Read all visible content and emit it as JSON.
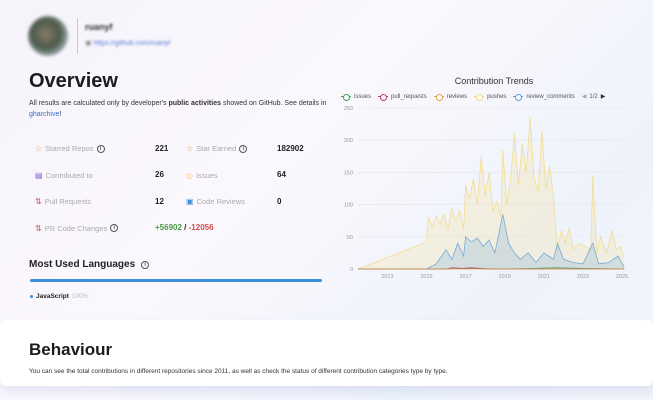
{
  "profile": {
    "username": "ruanyf",
    "url": "https://github.com/ruanyf"
  },
  "overview": {
    "title": "Overview",
    "desc_pre": "All results are calculated only by developer's ",
    "desc_bold": "public activities",
    "desc_mid": " showed on GitHub. See details in ",
    "desc_link": "gharchive",
    "desc_end": "!"
  },
  "stats": [
    {
      "label": "Starred Repos",
      "value": "221",
      "icon": "star-icon",
      "info": true
    },
    {
      "label": "Star Earned",
      "value": "182902",
      "icon": "star-icon",
      "info": true
    },
    {
      "label": "Contributed to",
      "value": "26",
      "icon": "repo-icon"
    },
    {
      "label": "Issues",
      "value": "64",
      "icon": "issue-icon"
    },
    {
      "label": "Pull Requests",
      "value": "12",
      "icon": "pull-request-icon"
    },
    {
      "label": "Code Reviews",
      "value": "0",
      "icon": "code-review-icon"
    },
    {
      "label": "PR Code Changes",
      "icon": "pull-request-icon",
      "info": true,
      "additions": "+56902",
      "sep": "/",
      "deletions": "-12056"
    }
  ],
  "languages": {
    "title": "Most Used Languages",
    "items": [
      {
        "name": "JavaScript",
        "percent": "100%",
        "color": "#3b8fd8"
      }
    ]
  },
  "behaviour": {
    "title": "Behaviour",
    "desc": "You can see the total contributions in different repositories since 2011, as well as check the status of different contribution categories type by type."
  },
  "colors": {
    "additions": "#4a9a4a",
    "deletions": "#d04a4a",
    "accent": "#3b8fd8"
  },
  "chart_data": {
    "type": "area",
    "title": "Contribution Trends",
    "legend_page": "1/2",
    "legend_placement": "top",
    "xlim": [
      2011.5,
      2025.25
    ],
    "ylim": [
      0,
      250
    ],
    "yticks": [
      0,
      50,
      100,
      150,
      200,
      250
    ],
    "xticks": [
      2013,
      2015,
      2017,
      2019,
      2021,
      2023,
      2025
    ],
    "grid": true,
    "series": [
      {
        "name": "issues",
        "color": "#3ba35a",
        "points": [
          [
            2011.5,
            0
          ],
          [
            2016,
            0
          ],
          [
            2017,
            1
          ],
          [
            2019,
            0
          ],
          [
            2020.5,
            1
          ],
          [
            2021.5,
            2
          ],
          [
            2023,
            1
          ],
          [
            2025.1,
            0
          ]
        ]
      },
      {
        "name": "pull_requests",
        "color": "#c23a6a",
        "points": [
          [
            2011.5,
            0
          ],
          [
            2016,
            0
          ],
          [
            2016.3,
            2
          ],
          [
            2016.8,
            1
          ],
          [
            2017.3,
            2
          ],
          [
            2017.8,
            1
          ],
          [
            2018,
            0
          ],
          [
            2025.1,
            0
          ]
        ]
      },
      {
        "name": "reviews",
        "color": "#e0a040",
        "points": [
          [
            2011.5,
            0
          ],
          [
            2025.1,
            0
          ]
        ]
      },
      {
        "name": "pushes",
        "color": "#f4d77a",
        "points": [
          [
            2011.5,
            0
          ],
          [
            2015,
            42
          ],
          [
            2015.1,
            80
          ],
          [
            2015.3,
            65
          ],
          [
            2015.5,
            82
          ],
          [
            2015.7,
            70
          ],
          [
            2015.9,
            85
          ],
          [
            2016.1,
            62
          ],
          [
            2016.3,
            95
          ],
          [
            2016.5,
            75
          ],
          [
            2016.7,
            90
          ],
          [
            2016.9,
            62
          ],
          [
            2017,
            130
          ],
          [
            2017.2,
            110
          ],
          [
            2017.4,
            140
          ],
          [
            2017.6,
            100
          ],
          [
            2017.8,
            175
          ],
          [
            2018,
            115
          ],
          [
            2018.2,
            150
          ],
          [
            2018.4,
            90
          ],
          [
            2018.6,
            105
          ],
          [
            2018.8,
            80
          ],
          [
            2018.9,
            185
          ],
          [
            2019.1,
            100
          ],
          [
            2019.3,
            140
          ],
          [
            2019.5,
            210
          ],
          [
            2019.7,
            130
          ],
          [
            2019.9,
            195
          ],
          [
            2020.1,
            150
          ],
          [
            2020.3,
            235
          ],
          [
            2020.5,
            140
          ],
          [
            2020.7,
            120
          ],
          [
            2020.9,
            215
          ],
          [
            2021.1,
            125
          ],
          [
            2021.3,
            160
          ],
          [
            2021.5,
            110
          ],
          [
            2021.7,
            30
          ],
          [
            2021.9,
            60
          ],
          [
            2022.1,
            40
          ],
          [
            2022.3,
            65
          ],
          [
            2022.5,
            30
          ],
          [
            2022.8,
            40
          ],
          [
            2023.1,
            35
          ],
          [
            2023.4,
            30
          ],
          [
            2023.5,
            145
          ],
          [
            2023.7,
            25
          ],
          [
            2023.9,
            50
          ],
          [
            2024.2,
            25
          ],
          [
            2024.5,
            60
          ],
          [
            2024.7,
            30
          ],
          [
            2024.9,
            35
          ],
          [
            2025.1,
            18
          ]
        ]
      },
      {
        "name": "review_comments",
        "color": "#5b9bd8",
        "points": [
          [
            2011.5,
            0
          ],
          [
            2015,
            0
          ],
          [
            2015.5,
            8
          ],
          [
            2016,
            30
          ],
          [
            2016.3,
            15
          ],
          [
            2016.6,
            40
          ],
          [
            2016.9,
            20
          ],
          [
            2017,
            50
          ],
          [
            2017.3,
            42
          ],
          [
            2017.6,
            48
          ],
          [
            2017.9,
            35
          ],
          [
            2018.2,
            45
          ],
          [
            2018.5,
            25
          ],
          [
            2018.9,
            85
          ],
          [
            2019.2,
            40
          ],
          [
            2019.5,
            25
          ],
          [
            2019.8,
            15
          ],
          [
            2020.2,
            25
          ],
          [
            2020.6,
            10
          ],
          [
            2021,
            25
          ],
          [
            2021.5,
            15
          ],
          [
            2021.7,
            40
          ],
          [
            2022,
            15
          ],
          [
            2022.5,
            10
          ],
          [
            2023,
            8
          ],
          [
            2023.5,
            40
          ],
          [
            2023.8,
            8
          ],
          [
            2024.3,
            10
          ],
          [
            2024.8,
            20
          ],
          [
            2025.1,
            3
          ]
        ]
      }
    ]
  }
}
